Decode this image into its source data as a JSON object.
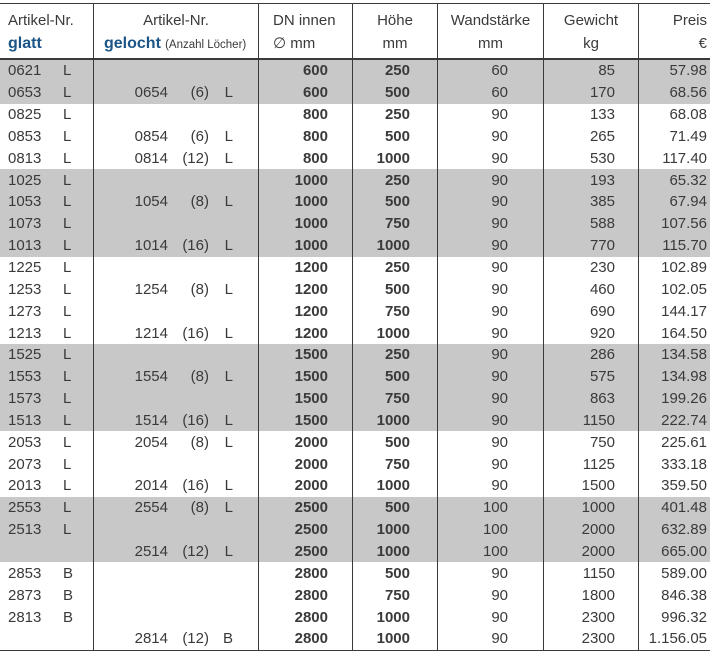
{
  "table": {
    "headers": {
      "col1_line1": "Artikel-Nr.",
      "col1_line2": "glatt",
      "col2_line1": "Artikel-Nr.",
      "col2_line2_main": "gelocht",
      "col2_line2_note": "(Anzahl Löcher)",
      "col3_line1": "DN innen",
      "col3_line2": "∅ mm",
      "col4_line1": "Höhe",
      "col4_line2": "mm",
      "col5_line1": "Wandstärke",
      "col5_line2": "mm",
      "col6_line1": "Gewicht",
      "col6_line2": "kg",
      "col7_line1": "Preis",
      "col7_line2": "€"
    },
    "colors": {
      "accent_blue": "#1b5486",
      "band_grey": "#c8c8c8",
      "text_dark": "#3a3a3a"
    },
    "rows": [
      {
        "glatt": "0621",
        "glatt_letter": "L",
        "gelocht": "",
        "holes": "",
        "gelocht_letter": "",
        "dn": "600",
        "hoehe": "250",
        "wand": "60",
        "gewicht": "85",
        "preis": "57.98",
        "band": "grey"
      },
      {
        "glatt": "0653",
        "glatt_letter": "L",
        "gelocht": "0654",
        "holes": "(6)",
        "gelocht_letter": "L",
        "dn": "600",
        "hoehe": "500",
        "wand": "60",
        "gewicht": "170",
        "preis": "68.56",
        "band": "grey"
      },
      {
        "glatt": "0825",
        "glatt_letter": "L",
        "gelocht": "",
        "holes": "",
        "gelocht_letter": "",
        "dn": "800",
        "hoehe": "250",
        "wand": "90",
        "gewicht": "133",
        "preis": "68.08",
        "band": "white"
      },
      {
        "glatt": "0853",
        "glatt_letter": "L",
        "gelocht": "0854",
        "holes": "(6)",
        "gelocht_letter": "L",
        "dn": "800",
        "hoehe": "500",
        "wand": "90",
        "gewicht": "265",
        "preis": "71.49",
        "band": "white"
      },
      {
        "glatt": "0813",
        "glatt_letter": "L",
        "gelocht": "0814",
        "holes": "(12)",
        "gelocht_letter": "L",
        "dn": "800",
        "hoehe": "1000",
        "wand": "90",
        "gewicht": "530",
        "preis": "117.40",
        "band": "white"
      },
      {
        "glatt": "1025",
        "glatt_letter": "L",
        "gelocht": "",
        "holes": "",
        "gelocht_letter": "",
        "dn": "1000",
        "hoehe": "250",
        "wand": "90",
        "gewicht": "193",
        "preis": "65.32",
        "band": "grey"
      },
      {
        "glatt": "1053",
        "glatt_letter": "L",
        "gelocht": "1054",
        "holes": "(8)",
        "gelocht_letter": "L",
        "dn": "1000",
        "hoehe": "500",
        "wand": "90",
        "gewicht": "385",
        "preis": "67.94",
        "band": "grey"
      },
      {
        "glatt": "1073",
        "glatt_letter": "L",
        "gelocht": "",
        "holes": "",
        "gelocht_letter": "",
        "dn": "1000",
        "hoehe": "750",
        "wand": "90",
        "gewicht": "588",
        "preis": "107.56",
        "band": "grey"
      },
      {
        "glatt": "1013",
        "glatt_letter": "L",
        "gelocht": "1014",
        "holes": "(16)",
        "gelocht_letter": "L",
        "dn": "1000",
        "hoehe": "1000",
        "wand": "90",
        "gewicht": "770",
        "preis": "115.70",
        "band": "grey"
      },
      {
        "glatt": "1225",
        "glatt_letter": "L",
        "gelocht": "",
        "holes": "",
        "gelocht_letter": "",
        "dn": "1200",
        "hoehe": "250",
        "wand": "90",
        "gewicht": "230",
        "preis": "102.89",
        "band": "white"
      },
      {
        "glatt": "1253",
        "glatt_letter": "L",
        "gelocht": "1254",
        "holes": "(8)",
        "gelocht_letter": "L",
        "dn": "1200",
        "hoehe": "500",
        "wand": "90",
        "gewicht": "460",
        "preis": "102.05",
        "band": "white"
      },
      {
        "glatt": "1273",
        "glatt_letter": "L",
        "gelocht": "",
        "holes": "",
        "gelocht_letter": "",
        "dn": "1200",
        "hoehe": "750",
        "wand": "90",
        "gewicht": "690",
        "preis": "144.17",
        "band": "white"
      },
      {
        "glatt": "1213",
        "glatt_letter": "L",
        "gelocht": "1214",
        "holes": "(16)",
        "gelocht_letter": "L",
        "dn": "1200",
        "hoehe": "1000",
        "wand": "90",
        "gewicht": "920",
        "preis": "164.50",
        "band": "white"
      },
      {
        "glatt": "1525",
        "glatt_letter": "L",
        "gelocht": "",
        "holes": "",
        "gelocht_letter": "",
        "dn": "1500",
        "hoehe": "250",
        "wand": "90",
        "gewicht": "286",
        "preis": "134.58",
        "band": "grey"
      },
      {
        "glatt": "1553",
        "glatt_letter": "L",
        "gelocht": "1554",
        "holes": "(8)",
        "gelocht_letter": "L",
        "dn": "1500",
        "hoehe": "500",
        "wand": "90",
        "gewicht": "575",
        "preis": "134.98",
        "band": "grey"
      },
      {
        "glatt": "1573",
        "glatt_letter": "L",
        "gelocht": "",
        "holes": "",
        "gelocht_letter": "",
        "dn": "1500",
        "hoehe": "750",
        "wand": "90",
        "gewicht": "863",
        "preis": "199.26",
        "band": "grey"
      },
      {
        "glatt": "1513",
        "glatt_letter": "L",
        "gelocht": "1514",
        "holes": "(16)",
        "gelocht_letter": "L",
        "dn": "1500",
        "hoehe": "1000",
        "wand": "90",
        "gewicht": "1150",
        "preis": "222.74",
        "band": "grey"
      },
      {
        "glatt": "2053",
        "glatt_letter": "L",
        "gelocht": "2054",
        "holes": "(8)",
        "gelocht_letter": "L",
        "dn": "2000",
        "hoehe": "500",
        "wand": "90",
        "gewicht": "750",
        "preis": "225.61",
        "band": "white"
      },
      {
        "glatt": "2073",
        "glatt_letter": "L",
        "gelocht": "",
        "holes": "",
        "gelocht_letter": "",
        "dn": "2000",
        "hoehe": "750",
        "wand": "90",
        "gewicht": "1125",
        "preis": "333.18",
        "band": "white"
      },
      {
        "glatt": "2013",
        "glatt_letter": "L",
        "gelocht": "2014",
        "holes": "(16)",
        "gelocht_letter": "L",
        "dn": "2000",
        "hoehe": "1000",
        "wand": "90",
        "gewicht": "1500",
        "preis": "359.50",
        "band": "white"
      },
      {
        "glatt": "2553",
        "glatt_letter": "L",
        "gelocht": "2554",
        "holes": "(8)",
        "gelocht_letter": "L",
        "dn": "2500",
        "hoehe": "500",
        "wand": "100",
        "gewicht": "1000",
        "preis": "401.48",
        "band": "grey"
      },
      {
        "glatt": "2513",
        "glatt_letter": "L",
        "gelocht": "",
        "holes": "",
        "gelocht_letter": "",
        "dn": "2500",
        "hoehe": "1000",
        "wand": "100",
        "gewicht": "2000",
        "preis": "632.89",
        "band": "grey"
      },
      {
        "glatt": "",
        "glatt_letter": "",
        "gelocht": "2514",
        "holes": "(12)",
        "gelocht_letter": "L",
        "dn": "2500",
        "hoehe": "1000",
        "wand": "100",
        "gewicht": "2000",
        "preis": "665.00",
        "band": "grey"
      },
      {
        "glatt": "2853",
        "glatt_letter": "B",
        "gelocht": "",
        "holes": "",
        "gelocht_letter": "",
        "dn": "2800",
        "hoehe": "500",
        "wand": "90",
        "gewicht": "1150",
        "preis": "589.00",
        "band": "white"
      },
      {
        "glatt": "2873",
        "glatt_letter": "B",
        "gelocht": "",
        "holes": "",
        "gelocht_letter": "",
        "dn": "2800",
        "hoehe": "750",
        "wand": "90",
        "gewicht": "1800",
        "preis": "846.38",
        "band": "white"
      },
      {
        "glatt": "2813",
        "glatt_letter": "B",
        "gelocht": "",
        "holes": "",
        "gelocht_letter": "",
        "dn": "2800",
        "hoehe": "1000",
        "wand": "90",
        "gewicht": "2300",
        "preis": "996.32",
        "band": "white"
      },
      {
        "glatt": "",
        "glatt_letter": "",
        "gelocht": "2814",
        "holes": "(12)",
        "gelocht_letter": "B",
        "dn": "2800",
        "hoehe": "1000",
        "wand": "90",
        "gewicht": "2300",
        "preis": "1.156.05",
        "band": "white"
      }
    ]
  }
}
